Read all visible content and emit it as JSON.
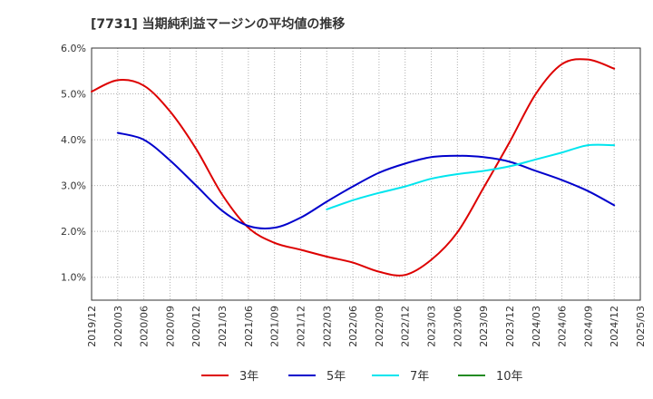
{
  "chart_data": {
    "type": "line",
    "title": "[7731]  当期純利益マージンの平均値の推移",
    "xlabel": "",
    "ylabel": "",
    "y_tick_labels": [
      "1.0%",
      "2.0%",
      "3.0%",
      "4.0%",
      "5.0%",
      "6.0%"
    ],
    "y_ticks": [
      1.0,
      2.0,
      3.0,
      4.0,
      5.0,
      6.0
    ],
    "ylim": [
      0.5,
      6.0
    ],
    "categories": [
      "2019/12",
      "2020/03",
      "2020/06",
      "2020/09",
      "2020/12",
      "2021/03",
      "2021/06",
      "2021/09",
      "2021/12",
      "2022/03",
      "2022/06",
      "2022/09",
      "2022/12",
      "2023/03",
      "2023/06",
      "2023/09",
      "2023/12",
      "2024/03",
      "2024/06",
      "2024/09",
      "2024/12",
      "2025/03"
    ],
    "grid": true,
    "legend_position": "bottom",
    "series": [
      {
        "name": "3年",
        "color": "#dd0000",
        "values": [
          5.05,
          5.3,
          5.18,
          4.62,
          3.8,
          2.8,
          2.08,
          1.75,
          1.6,
          1.45,
          1.32,
          1.12,
          1.05,
          1.38,
          1.98,
          2.95,
          3.95,
          5.0,
          5.65,
          5.75,
          5.55,
          null
        ]
      },
      {
        "name": "5年",
        "color": "#0000cc",
        "values": [
          null,
          4.15,
          4.0,
          3.55,
          3.0,
          2.45,
          2.12,
          2.08,
          2.3,
          2.65,
          2.98,
          3.28,
          3.48,
          3.62,
          3.65,
          3.62,
          3.52,
          3.32,
          3.12,
          2.88,
          2.57,
          null
        ]
      },
      {
        "name": "7年",
        "color": "#00e5ee",
        "values": [
          null,
          null,
          null,
          null,
          null,
          null,
          null,
          null,
          null,
          2.48,
          2.68,
          2.84,
          2.98,
          3.15,
          3.25,
          3.32,
          3.42,
          3.57,
          3.72,
          3.88,
          3.88,
          null
        ]
      },
      {
        "name": "10年",
        "color": "#228b22",
        "values": [
          null,
          null,
          null,
          null,
          null,
          null,
          null,
          null,
          null,
          null,
          null,
          null,
          null,
          null,
          null,
          null,
          null,
          null,
          null,
          null,
          null,
          null
        ]
      }
    ]
  }
}
